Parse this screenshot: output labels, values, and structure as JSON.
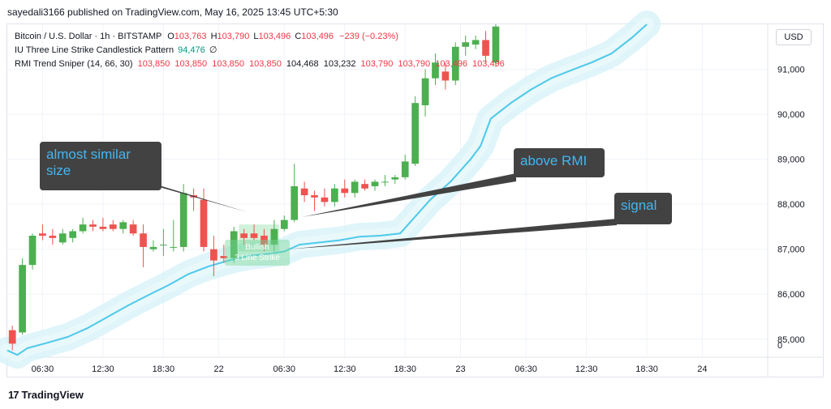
{
  "publisher": "sayedali3166 published on TradingView.com, May 16, 2025 13:45 UTC+5:30",
  "legend": {
    "symbol": "Bitcoin / U.S. Dollar · 1h · BITSTAMP",
    "o_label": "O",
    "o_value": "103,763",
    "h_label": "H",
    "h_value": "103,790",
    "l_label": "L",
    "l_value": "103,496",
    "c_label": "C",
    "c_value": "103,496",
    "change": "−239 (−0.23%)",
    "indicator1_name": "IU Three Line Strike Candlestick Pattern",
    "indicator1_value": "94,476",
    "indicator1_extra": "∅",
    "indicator2_name": "RMI Trend Sniper (14, 66, 30)",
    "indicator2_values": [
      "103,850",
      "103,850",
      "103,850",
      "103,850",
      "104,468",
      "103,232",
      "103,790",
      "103,790",
      "103,496",
      "103,496"
    ]
  },
  "currency_button": "USD",
  "footer_brand": "TradingView",
  "footer_mark": "17",
  "callouts": {
    "similar": "almost similar size",
    "above_rmi": "above RMI",
    "signal": "signal"
  },
  "strike_label": {
    "line1": "Bullish",
    "line2": "3 Line Strike"
  },
  "colors": {
    "up": "#4caf50",
    "down": "#ef5350",
    "rmi_line": "#4dc9ea",
    "rmi_band": "#d4f2f8",
    "callout_bg": "#424242",
    "callout_text": "#42b6f0"
  },
  "chart_data": {
    "type": "candlestick",
    "y_ticks": [
      85000,
      86000,
      87000,
      88000,
      89000,
      90000,
      91000
    ],
    "y_tick_labels": [
      "85,000",
      "86,000",
      "87,000",
      "88,000",
      "89,000",
      "90,000",
      "91,000"
    ],
    "y_extra_label": "0",
    "ylim": [
      84600,
      92000
    ],
    "x_tick_labels": [
      "06:30",
      "12:30",
      "18:30",
      "22",
      "06:30",
      "12:30",
      "18:30",
      "23",
      "06:30",
      "12:30",
      "18:30",
      "24"
    ],
    "x_tick_hours": [
      6.5,
      12.5,
      18.5,
      24,
      30.5,
      36.5,
      42.5,
      48,
      54.5,
      60.5,
      66.5,
      72
    ],
    "xlim": [
      3,
      78.5
    ],
    "grid": true,
    "candles": [
      {
        "t": 3.5,
        "o": 85200,
        "h": 85300,
        "l": 84750,
        "c": 84900
      },
      {
        "t": 4.5,
        "o": 85150,
        "h": 86800,
        "l": 85100,
        "c": 86650
      },
      {
        "t": 5.5,
        "o": 86650,
        "h": 87350,
        "l": 86550,
        "c": 87300
      },
      {
        "t": 6.5,
        "o": 87350,
        "h": 87550,
        "l": 87200,
        "c": 87300
      },
      {
        "t": 7.5,
        "o": 87300,
        "h": 87450,
        "l": 87100,
        "c": 87250
      },
      {
        "t": 8.5,
        "o": 87150,
        "h": 87450,
        "l": 87100,
        "c": 87350
      },
      {
        "t": 9.5,
        "o": 87250,
        "h": 87450,
        "l": 87150,
        "c": 87400
      },
      {
        "t": 10.5,
        "o": 87400,
        "h": 87700,
        "l": 87350,
        "c": 87550
      },
      {
        "t": 11.5,
        "o": 87550,
        "h": 87650,
        "l": 87400,
        "c": 87500
      },
      {
        "t": 12.5,
        "o": 87500,
        "h": 87700,
        "l": 87400,
        "c": 87450
      },
      {
        "t": 13.5,
        "o": 87550,
        "h": 87650,
        "l": 87400,
        "c": 87450
      },
      {
        "t": 14.5,
        "o": 87450,
        "h": 87650,
        "l": 87350,
        "c": 87600
      },
      {
        "t": 15.5,
        "o": 87550,
        "h": 87650,
        "l": 87300,
        "c": 87350
      },
      {
        "t": 16.5,
        "o": 87350,
        "h": 87550,
        "l": 86600,
        "c": 87050
      },
      {
        "t": 17.5,
        "o": 87000,
        "h": 87200,
        "l": 86950,
        "c": 87050
      },
      {
        "t": 18.5,
        "o": 87100,
        "h": 87450,
        "l": 86850,
        "c": 87100
      },
      {
        "t": 19.5,
        "o": 87050,
        "h": 87650,
        "l": 86950,
        "c": 87050
      },
      {
        "t": 20.5,
        "o": 87050,
        "h": 88450,
        "l": 86950,
        "c": 88250
      },
      {
        "t": 21.5,
        "o": 88200,
        "h": 88350,
        "l": 87850,
        "c": 88150
      },
      {
        "t": 22.5,
        "o": 88100,
        "h": 88350,
        "l": 86950,
        "c": 87050
      },
      {
        "t": 23.5,
        "o": 87000,
        "h": 87300,
        "l": 86400,
        "c": 86750
      },
      {
        "t": 24.5,
        "o": 86850,
        "h": 87100,
        "l": 86700,
        "c": 86800
      },
      {
        "t": 25.5,
        "o": 86800,
        "h": 87500,
        "l": 86700,
        "c": 87400
      },
      {
        "t": 26.5,
        "o": 87350,
        "h": 87450,
        "l": 87100,
        "c": 87250
      },
      {
        "t": 27.5,
        "o": 87350,
        "h": 87550,
        "l": 87200,
        "c": 87250
      },
      {
        "t": 28.5,
        "o": 87300,
        "h": 87450,
        "l": 86950,
        "c": 87100
      },
      {
        "t": 29.5,
        "o": 87100,
        "h": 87650,
        "l": 86950,
        "c": 87450
      },
      {
        "t": 30.5,
        "o": 87450,
        "h": 87750,
        "l": 87400,
        "c": 87650
      },
      {
        "t": 31.5,
        "o": 87650,
        "h": 88900,
        "l": 87600,
        "c": 88400
      },
      {
        "t": 32.5,
        "o": 88350,
        "h": 88500,
        "l": 88050,
        "c": 88200
      },
      {
        "t": 33.5,
        "o": 88200,
        "h": 88300,
        "l": 87850,
        "c": 88150
      },
      {
        "t": 34.5,
        "o": 88150,
        "h": 88350,
        "l": 87950,
        "c": 88050
      },
      {
        "t": 35.5,
        "o": 88050,
        "h": 88450,
        "l": 87950,
        "c": 88350
      },
      {
        "t": 36.5,
        "o": 88350,
        "h": 88550,
        "l": 88150,
        "c": 88250
      },
      {
        "t": 37.5,
        "o": 88250,
        "h": 88550,
        "l": 88150,
        "c": 88500
      },
      {
        "t": 38.5,
        "o": 88450,
        "h": 88550,
        "l": 88300,
        "c": 88350
      },
      {
        "t": 39.5,
        "o": 88400,
        "h": 88550,
        "l": 88300,
        "c": 88500
      },
      {
        "t": 40.5,
        "o": 88500,
        "h": 88650,
        "l": 88400,
        "c": 88500
      },
      {
        "t": 41.5,
        "o": 88550,
        "h": 88650,
        "l": 88450,
        "c": 88600
      },
      {
        "t": 42.5,
        "o": 88600,
        "h": 89100,
        "l": 88550,
        "c": 88950
      },
      {
        "t": 43.5,
        "o": 88900,
        "h": 90400,
        "l": 88850,
        "c": 90250
      },
      {
        "t": 44.5,
        "o": 90200,
        "h": 91000,
        "l": 89950,
        "c": 90800
      },
      {
        "t": 45.5,
        "o": 90800,
        "h": 91350,
        "l": 90650,
        "c": 91150
      },
      {
        "t": 46.5,
        "o": 90950,
        "h": 91150,
        "l": 90550,
        "c": 90750
      },
      {
        "t": 47.5,
        "o": 90750,
        "h": 91600,
        "l": 90650,
        "c": 91500
      },
      {
        "t": 48.5,
        "o": 91500,
        "h": 91750,
        "l": 91300,
        "c": 91600
      },
      {
        "t": 49.5,
        "o": 91550,
        "h": 91750,
        "l": 91450,
        "c": 91650
      },
      {
        "t": 50.5,
        "o": 91650,
        "h": 91850,
        "l": 91150,
        "c": 91300
      },
      {
        "t": 51.5,
        "o": 91150,
        "h": 92000,
        "l": 91050,
        "c": 91950
      }
    ],
    "rmi_line": [
      [
        3,
        84750
      ],
      [
        4,
        84650
      ],
      [
        5,
        84800
      ],
      [
        7,
        84920
      ],
      [
        9,
        85050
      ],
      [
        11,
        85250
      ],
      [
        13,
        85500
      ],
      [
        15,
        85750
      ],
      [
        17,
        85980
      ],
      [
        19,
        86200
      ],
      [
        21,
        86450
      ],
      [
        23,
        86620
      ],
      [
        25,
        86750
      ],
      [
        27,
        86850
      ],
      [
        29,
        86900
      ],
      [
        30.5,
        86950
      ],
      [
        32,
        87100
      ],
      [
        34,
        87150
      ],
      [
        36,
        87200
      ],
      [
        38,
        87280
      ],
      [
        40,
        87300
      ],
      [
        42,
        87350
      ],
      [
        43,
        87600
      ],
      [
        45,
        88100
      ],
      [
        47,
        88500
      ],
      [
        49,
        89000
      ],
      [
        50,
        89300
      ],
      [
        51,
        89900
      ],
      [
        53,
        90250
      ],
      [
        55,
        90550
      ],
      [
        57,
        90800
      ],
      [
        59,
        90980
      ],
      [
        61,
        91150
      ],
      [
        63,
        91350
      ],
      [
        65,
        91700
      ],
      [
        66.5,
        92000
      ]
    ],
    "strike_pattern": {
      "t_start": 26,
      "t_end": 30,
      "low": 86950,
      "high": 87550
    }
  }
}
